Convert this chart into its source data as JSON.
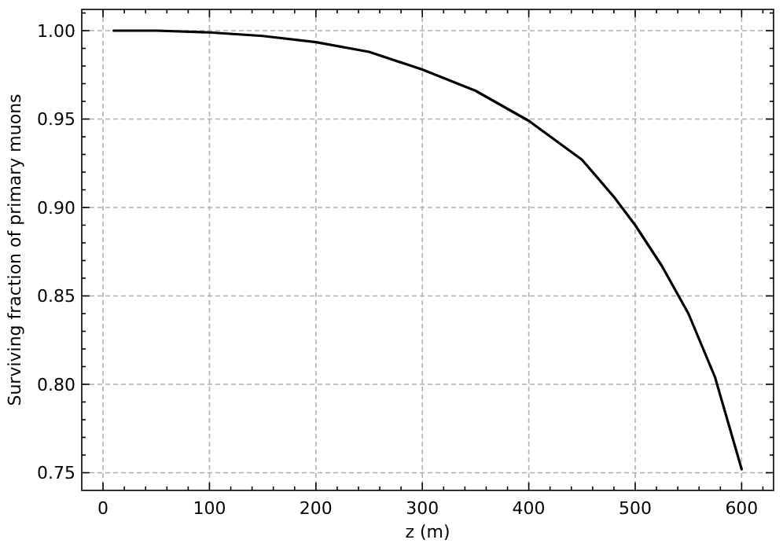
{
  "chart_data": {
    "type": "line",
    "xlabel": "z (m)",
    "ylabel": "Surviving fraction of primary muons",
    "x": [
      10,
      50,
      100,
      150,
      200,
      250,
      300,
      350,
      400,
      450,
      480,
      500,
      525,
      550,
      575,
      600
    ],
    "series": [
      {
        "color": "#000000",
        "values": [
          1.0,
          1.0,
          0.999,
          0.997,
          0.9935,
          0.988,
          0.978,
          0.966,
          0.949,
          0.927,
          0.906,
          0.89,
          0.867,
          0.84,
          0.804,
          0.752
        ]
      }
    ],
    "xlim": [
      -20,
      630
    ],
    "ylim": [
      0.74,
      1.012
    ],
    "xticks": [
      0,
      {
        "value": 20,
        "label": null
      },
      {
        "value": 40,
        "label": null
      },
      {
        "value": 60,
        "label": null
      },
      {
        "value": 80,
        "label": null
      },
      100,
      {
        "value": 120,
        "label": null
      },
      {
        "value": 140,
        "label": null
      },
      {
        "value": 160,
        "label": null
      },
      {
        "value": 180,
        "label": null
      },
      200,
      {
        "value": 220,
        "label": null
      },
      {
        "value": 240,
        "label": null
      },
      {
        "value": 260,
        "label": null
      },
      {
        "value": 280,
        "label": null
      },
      300,
      {
        "value": 320,
        "label": null
      },
      {
        "value": 340,
        "label": null
      },
      {
        "value": 360,
        "label": null
      },
      {
        "value": 380,
        "label": null
      },
      400,
      {
        "value": 420,
        "label": null
      },
      {
        "value": 440,
        "label": null
      },
      {
        "value": 460,
        "label": null
      },
      {
        "value": 480,
        "label": null
      },
      500,
      {
        "value": 520,
        "label": null
      },
      {
        "value": 540,
        "label": null
      },
      {
        "value": 560,
        "label": null
      },
      {
        "value": 580,
        "label": null
      },
      600,
      {
        "value": 620,
        "label": null
      }
    ],
    "yticks": [
      {
        "value": 0.75,
        "label": "0.75"
      },
      {
        "value": 0.76,
        "label": null
      },
      {
        "value": 0.77,
        "label": null
      },
      {
        "value": 0.78,
        "label": null
      },
      {
        "value": 0.79,
        "label": null
      },
      {
        "value": 0.8,
        "label": "0.80"
      },
      {
        "value": 0.81,
        "label": null
      },
      {
        "value": 0.82,
        "label": null
      },
      {
        "value": 0.83,
        "label": null
      },
      {
        "value": 0.84,
        "label": null
      },
      {
        "value": 0.85,
        "label": "0.85"
      },
      {
        "value": 0.86,
        "label": null
      },
      {
        "value": 0.87,
        "label": null
      },
      {
        "value": 0.88,
        "label": null
      },
      {
        "value": 0.89,
        "label": null
      },
      {
        "value": 0.9,
        "label": "0.90"
      },
      {
        "value": 0.91,
        "label": null
      },
      {
        "value": 0.92,
        "label": null
      },
      {
        "value": 0.93,
        "label": null
      },
      {
        "value": 0.94,
        "label": null
      },
      {
        "value": 0.95,
        "label": "0.95"
      },
      {
        "value": 0.96,
        "label": null
      },
      {
        "value": 0.97,
        "label": null
      },
      {
        "value": 0.98,
        "label": null
      },
      {
        "value": 0.99,
        "label": null
      },
      {
        "value": 1.0,
        "label": "1.00"
      },
      {
        "value": 1.01,
        "label": null
      }
    ],
    "grid": true,
    "marker": "none",
    "line_style": "solid"
  }
}
